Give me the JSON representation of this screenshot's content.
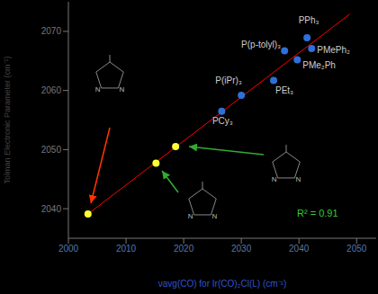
{
  "chart_data": {
    "type": "scatter",
    "x_label": "νavg(CO) for Ir(CO)₂Cl(L) (cm⁻¹)",
    "y_label": "Tolman Electronic Parameter (cm⁻¹)",
    "xlim": [
      2000,
      2053.4
    ],
    "xticks": [
      2000,
      2010,
      2020,
      2030,
      2040,
      2050
    ],
    "ylim": [
      2035,
      2075
    ],
    "yticks": [
      2040,
      2050,
      2060,
      2070
    ],
    "grid": false,
    "series": [
      {
        "color": "#2f6fd8",
        "x": [
          2041.4,
          2037.5,
          2042.2,
          2039.7,
          2035.6,
          2030.0,
          2026.6
        ],
        "values": [
          2068.9,
          2066.7,
          2067.1,
          2065.2,
          2061.7,
          2059.2,
          2056.5
        ],
        "labels": [
          "PPh₃",
          "P(p-tolyl)₃",
          "PMePh₂",
          "PMe₂Ph",
          "PEt₃",
          "P(iPr)₃",
          "PCy₃"
        ]
      },
      {
        "color": "#ffff33",
        "x": [
          2003.4,
          2015.2,
          2018.6
        ],
        "values": [
          2039.1,
          2047.7,
          2050.5
        ]
      }
    ],
    "trend_line": {
      "x": [
        2003.4,
        2048.8
      ],
      "values": [
        2039.1,
        2072.9
      ],
      "color": "#ff0000"
    },
    "annotations": [
      {
        "text": "R² = 0.91",
        "color": "#33cc33"
      }
    ],
    "structure_atom": "N"
  }
}
